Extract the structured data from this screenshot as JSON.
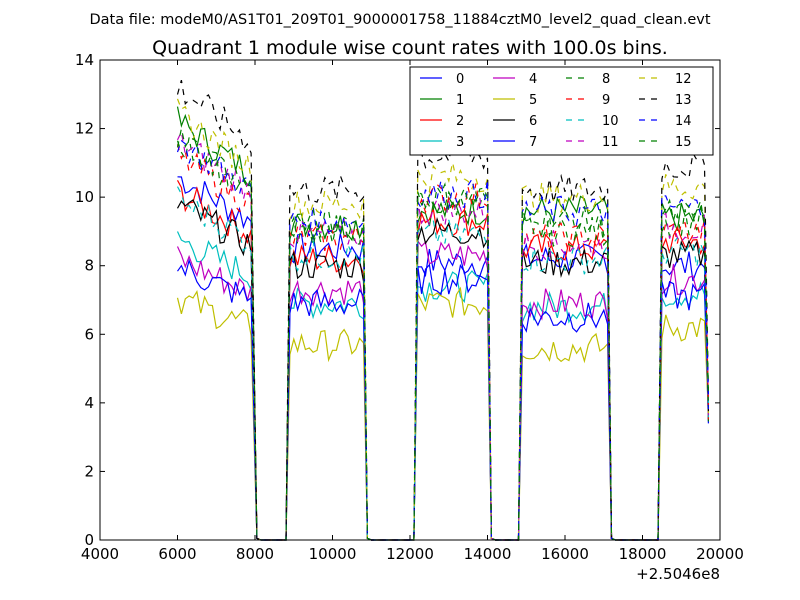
{
  "chart_data": {
    "type": "line",
    "suptitle": "Data file: modeM0/AS1T01_209T01_9000001758_11884cztM0_level2_quad_clean.evt",
    "title": "Quadrant 1 module wise count rates with 100.0s bins.",
    "xlabel": "",
    "ylabel": "",
    "x_offset_label": "+2.5046e8",
    "xlim": [
      4000,
      20000
    ],
    "ylim": [
      0,
      14
    ],
    "xticks": [
      "4000",
      "6000",
      "8000",
      "10000",
      "12000",
      "14000",
      "16000",
      "18000",
      "20000"
    ],
    "yticks": [
      "0",
      "2",
      "4",
      "6",
      "8",
      "10",
      "12",
      "14"
    ],
    "grid": false,
    "legend_position": "top-right",
    "bin_width_s": 100,
    "segments": [
      [
        6000,
        7900
      ],
      [
        8900,
        10800
      ],
      [
        12200,
        14000
      ],
      [
        14900,
        17100
      ],
      [
        18500,
        19700
      ]
    ],
    "gap_levels": [
      {
        "x": 8050,
        "level": 0.05
      },
      {
        "x": 8150,
        "level": 0.0
      },
      {
        "x": 8700,
        "level": 0.0
      },
      {
        "x": 8800,
        "level": 0.0
      },
      {
        "x": 10900,
        "level": 0.05
      },
      {
        "x": 11000,
        "level": 0.0
      },
      {
        "x": 12000,
        "level": 0.0
      },
      {
        "x": 12100,
        "level": 0.0
      },
      {
        "x": 14100,
        "level": 0.05
      },
      {
        "x": 14200,
        "level": 0.0
      },
      {
        "x": 14700,
        "level": 0.0
      },
      {
        "x": 14800,
        "level": 0.0
      },
      {
        "x": 17200,
        "level": 0.05
      },
      {
        "x": 17300,
        "level": 0.0
      },
      {
        "x": 18300,
        "level": 0.0
      },
      {
        "x": 18400,
        "level": 0.0
      }
    ],
    "series": [
      {
        "name": "0",
        "color": "#0000ff",
        "style": "solid",
        "levels": [
          9.3,
          8.5,
          8.1,
          8.2,
          8.0
        ]
      },
      {
        "name": "1",
        "color": "#008000",
        "style": "solid",
        "levels": [
          10.7,
          9.2,
          9.6,
          9.6,
          9.4
        ]
      },
      {
        "name": "2",
        "color": "#ff0000",
        "style": "solid",
        "levels": [
          8.9,
          8.2,
          9.3,
          8.5,
          8.7
        ]
      },
      {
        "name": "3",
        "color": "#00bfbf",
        "style": "solid",
        "levels": [
          7.7,
          6.9,
          7.4,
          6.8,
          7.2
        ]
      },
      {
        "name": "4",
        "color": "#bf00bf",
        "style": "solid",
        "levels": [
          7.2,
          7.3,
          8.3,
          6.9,
          7.6
        ]
      },
      {
        "name": "5",
        "color": "#bfbf00",
        "style": "solid",
        "levels": [
          6.2,
          5.7,
          6.9,
          5.6,
          6.2
        ]
      },
      {
        "name": "6",
        "color": "#000000",
        "style": "solid",
        "levels": [
          8.6,
          8.0,
          9.0,
          8.1,
          8.3
        ]
      },
      {
        "name": "7",
        "color": "#0000ff",
        "style": "solid",
        "levels": [
          7.0,
          6.9,
          7.6,
          6.5,
          7.1
        ]
      },
      {
        "name": "8",
        "color": "#008000",
        "style": "dashed",
        "levels": [
          10.2,
          9.0,
          9.8,
          9.0,
          9.3
        ]
      },
      {
        "name": "9",
        "color": "#ff0000",
        "style": "dashed",
        "levels": [
          9.8,
          8.8,
          10.0,
          8.8,
          9.0
        ]
      },
      {
        "name": "10",
        "color": "#00bfbf",
        "style": "dashed",
        "levels": [
          8.7,
          8.3,
          8.9,
          8.2,
          8.4
        ]
      },
      {
        "name": "11",
        "color": "#bf00bf",
        "style": "dashed",
        "levels": [
          10.2,
          8.9,
          9.6,
          8.6,
          9.1
        ]
      },
      {
        "name": "12",
        "color": "#bfbf00",
        "style": "dashed",
        "levels": [
          10.9,
          9.8,
          10.6,
          10.0,
          10.3
        ]
      },
      {
        "name": "13",
        "color": "#000000",
        "style": "dashed",
        "levels": [
          11.6,
          10.2,
          11.2,
          10.2,
          10.9
        ]
      },
      {
        "name": "14",
        "color": "#0000ff",
        "style": "dashed",
        "levels": [
          10.2,
          9.3,
          10.1,
          9.6,
          9.7
        ]
      },
      {
        "name": "15",
        "color": "#008000",
        "style": "dashed",
        "levels": [
          10.3,
          9.2,
          10.0,
          9.3,
          9.5
        ]
      }
    ]
  }
}
